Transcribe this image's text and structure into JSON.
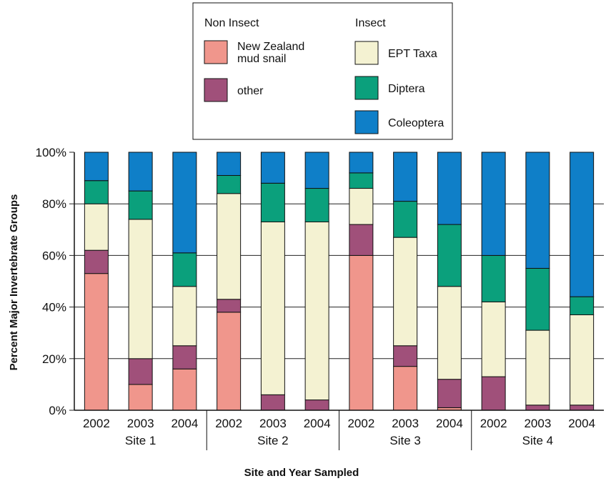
{
  "chart_data": {
    "type": "bar",
    "stacked": true,
    "percent_axis": true,
    "title": "",
    "xlabel": "Site and Year Sampled",
    "ylabel": "Percent Major Invertebrate Groups",
    "ylim": [
      0,
      100
    ],
    "yticks": [
      "0%",
      "20%",
      "40%",
      "60%",
      "80%",
      "100%"
    ],
    "grid": "horizontal",
    "groups": [
      {
        "label": "Site 1",
        "years": [
          "2002",
          "2003",
          "2004"
        ]
      },
      {
        "label": "Site 2",
        "years": [
          "2002",
          "2003",
          "2004"
        ]
      },
      {
        "label": "Site 3",
        "years": [
          "2002",
          "2003",
          "2004"
        ]
      },
      {
        "label": "Site 4",
        "years": [
          "2002",
          "2003",
          "2004"
        ]
      }
    ],
    "categories": [
      "Site 1 2002",
      "Site 1 2003",
      "Site 1 2004",
      "Site 2 2002",
      "Site 2 2003",
      "Site 2 2004",
      "Site 3 2002",
      "Site 3 2003",
      "Site 3 2004",
      "Site 4 2002",
      "Site 4 2003",
      "Site 4 2004"
    ],
    "legend": {
      "placement": "top",
      "groups": [
        {
          "title": "Non Insect",
          "entries": [
            "New Zealand mud snail",
            "other"
          ]
        },
        {
          "title": "Insect",
          "entries": [
            "EPT Taxa",
            "Diptera",
            "Coleoptera"
          ]
        }
      ]
    },
    "series": [
      {
        "name": "New Zealand mud snail",
        "color": "#f0968c",
        "values": [
          53,
          10,
          16,
          38,
          0,
          0,
          60,
          17,
          1,
          0,
          0,
          0
        ]
      },
      {
        "name": "other",
        "color": "#a0507a",
        "values": [
          9,
          10,
          9,
          5,
          6,
          4,
          12,
          8,
          11,
          13,
          2,
          2
        ]
      },
      {
        "name": "EPT Taxa",
        "color": "#f4f2d2",
        "values": [
          18,
          54,
          23,
          41,
          67,
          69,
          14,
          42,
          36,
          29,
          29,
          35
        ]
      },
      {
        "name": "Diptera",
        "color": "#0ba07c",
        "values": [
          9,
          11,
          13,
          7,
          15,
          13,
          6,
          14,
          24,
          18,
          24,
          7
        ]
      },
      {
        "name": "Coleoptera",
        "color": "#0f7fc8",
        "values": [
          11,
          15,
          39,
          9,
          12,
          14,
          8,
          19,
          28,
          40,
          45,
          56
        ]
      }
    ]
  }
}
